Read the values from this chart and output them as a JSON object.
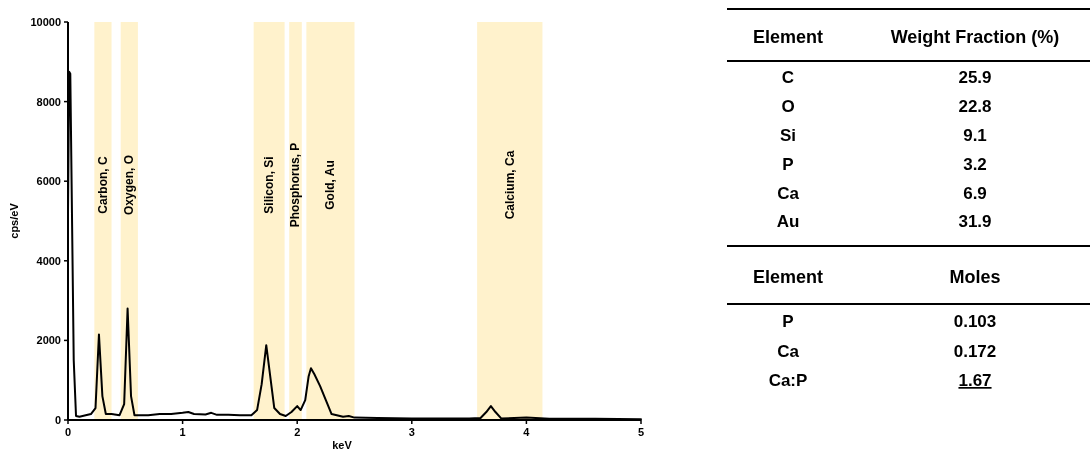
{
  "chart_data": [
    {
      "type": "line",
      "xlabel": "keV",
      "ylabel": "cps/eV",
      "xlim": [
        0,
        5
      ],
      "ylim": [
        0,
        10000
      ],
      "xticks": [
        0,
        1,
        2,
        3,
        4,
        5
      ],
      "yticks": [
        0,
        2000,
        4000,
        6000,
        8000,
        10000
      ],
      "grid": false,
      "marker": "none",
      "line_style": "solid",
      "series": [
        {
          "color": "#000000",
          "x": [
            0,
            0.01,
            0.02,
            0.05,
            0.07,
            0.1,
            0.2,
            0.24,
            0.27,
            0.3,
            0.33,
            0.38,
            0.45,
            0.49,
            0.52,
            0.55,
            0.58,
            0.7,
            0.8,
            0.9,
            1.0,
            1.05,
            1.1,
            1.2,
            1.25,
            1.3,
            1.4,
            1.5,
            1.6,
            1.65,
            1.69,
            1.73,
            1.76,
            1.8,
            1.85,
            1.9,
            1.95,
            2.0,
            2.03,
            2.07,
            2.1,
            2.12,
            2.15,
            2.2,
            2.25,
            2.3,
            2.4,
            2.45,
            2.5,
            2.7,
            3.0,
            3.5,
            3.6,
            3.65,
            3.69,
            3.73,
            3.78,
            4.0,
            4.2,
            4.6,
            5.0
          ],
          "values": [
            5200,
            8750,
            8700,
            1500,
            100,
            80,
            150,
            300,
            2150,
            600,
            150,
            150,
            120,
            400,
            2800,
            600,
            120,
            120,
            150,
            150,
            180,
            200,
            150,
            140,
            180,
            130,
            130,
            120,
            120,
            250,
            900,
            1880,
            1200,
            300,
            150,
            100,
            200,
            350,
            250,
            500,
            1100,
            1300,
            1150,
            850,
            500,
            150,
            80,
            100,
            60,
            50,
            40,
            40,
            50,
            200,
            350,
            200,
            40,
            60,
            30,
            30,
            20
          ]
        }
      ],
      "bands": [
        {
          "axis": "x",
          "from": 0.23,
          "to": 0.38,
          "label": "Carbon, C",
          "color": "#fff2cc"
        },
        {
          "axis": "x",
          "from": 0.46,
          "to": 0.61,
          "label": "Oxygen, O",
          "color": "#fff2cc"
        },
        {
          "axis": "x",
          "from": 1.62,
          "to": 1.89,
          "label": "Silicon, Si",
          "color": "#fff2cc"
        },
        {
          "axis": "x",
          "from": 1.93,
          "to": 2.04,
          "label": "Phosphorus, P",
          "color": "#fff2cc"
        },
        {
          "axis": "x",
          "from": 2.08,
          "to": 2.5,
          "label": "Gold, Au",
          "color": "#fff2cc"
        },
        {
          "axis": "x",
          "from": 3.57,
          "to": 4.14,
          "label": "Calcium, Ca",
          "color": "#fff2cc"
        }
      ]
    },
    {
      "type": "other",
      "annotations": [
        "Element",
        "Weight Fraction (%)",
        "C",
        "25.9",
        "O",
        "22.8",
        "Si",
        "9.1",
        "P",
        "3.2",
        "Ca",
        "6.9",
        "Au",
        "31.9",
        "Element",
        "Moles",
        "P",
        "0.103",
        "Ca",
        "0.172",
        "Ca:P",
        "1.67"
      ]
    }
  ]
}
